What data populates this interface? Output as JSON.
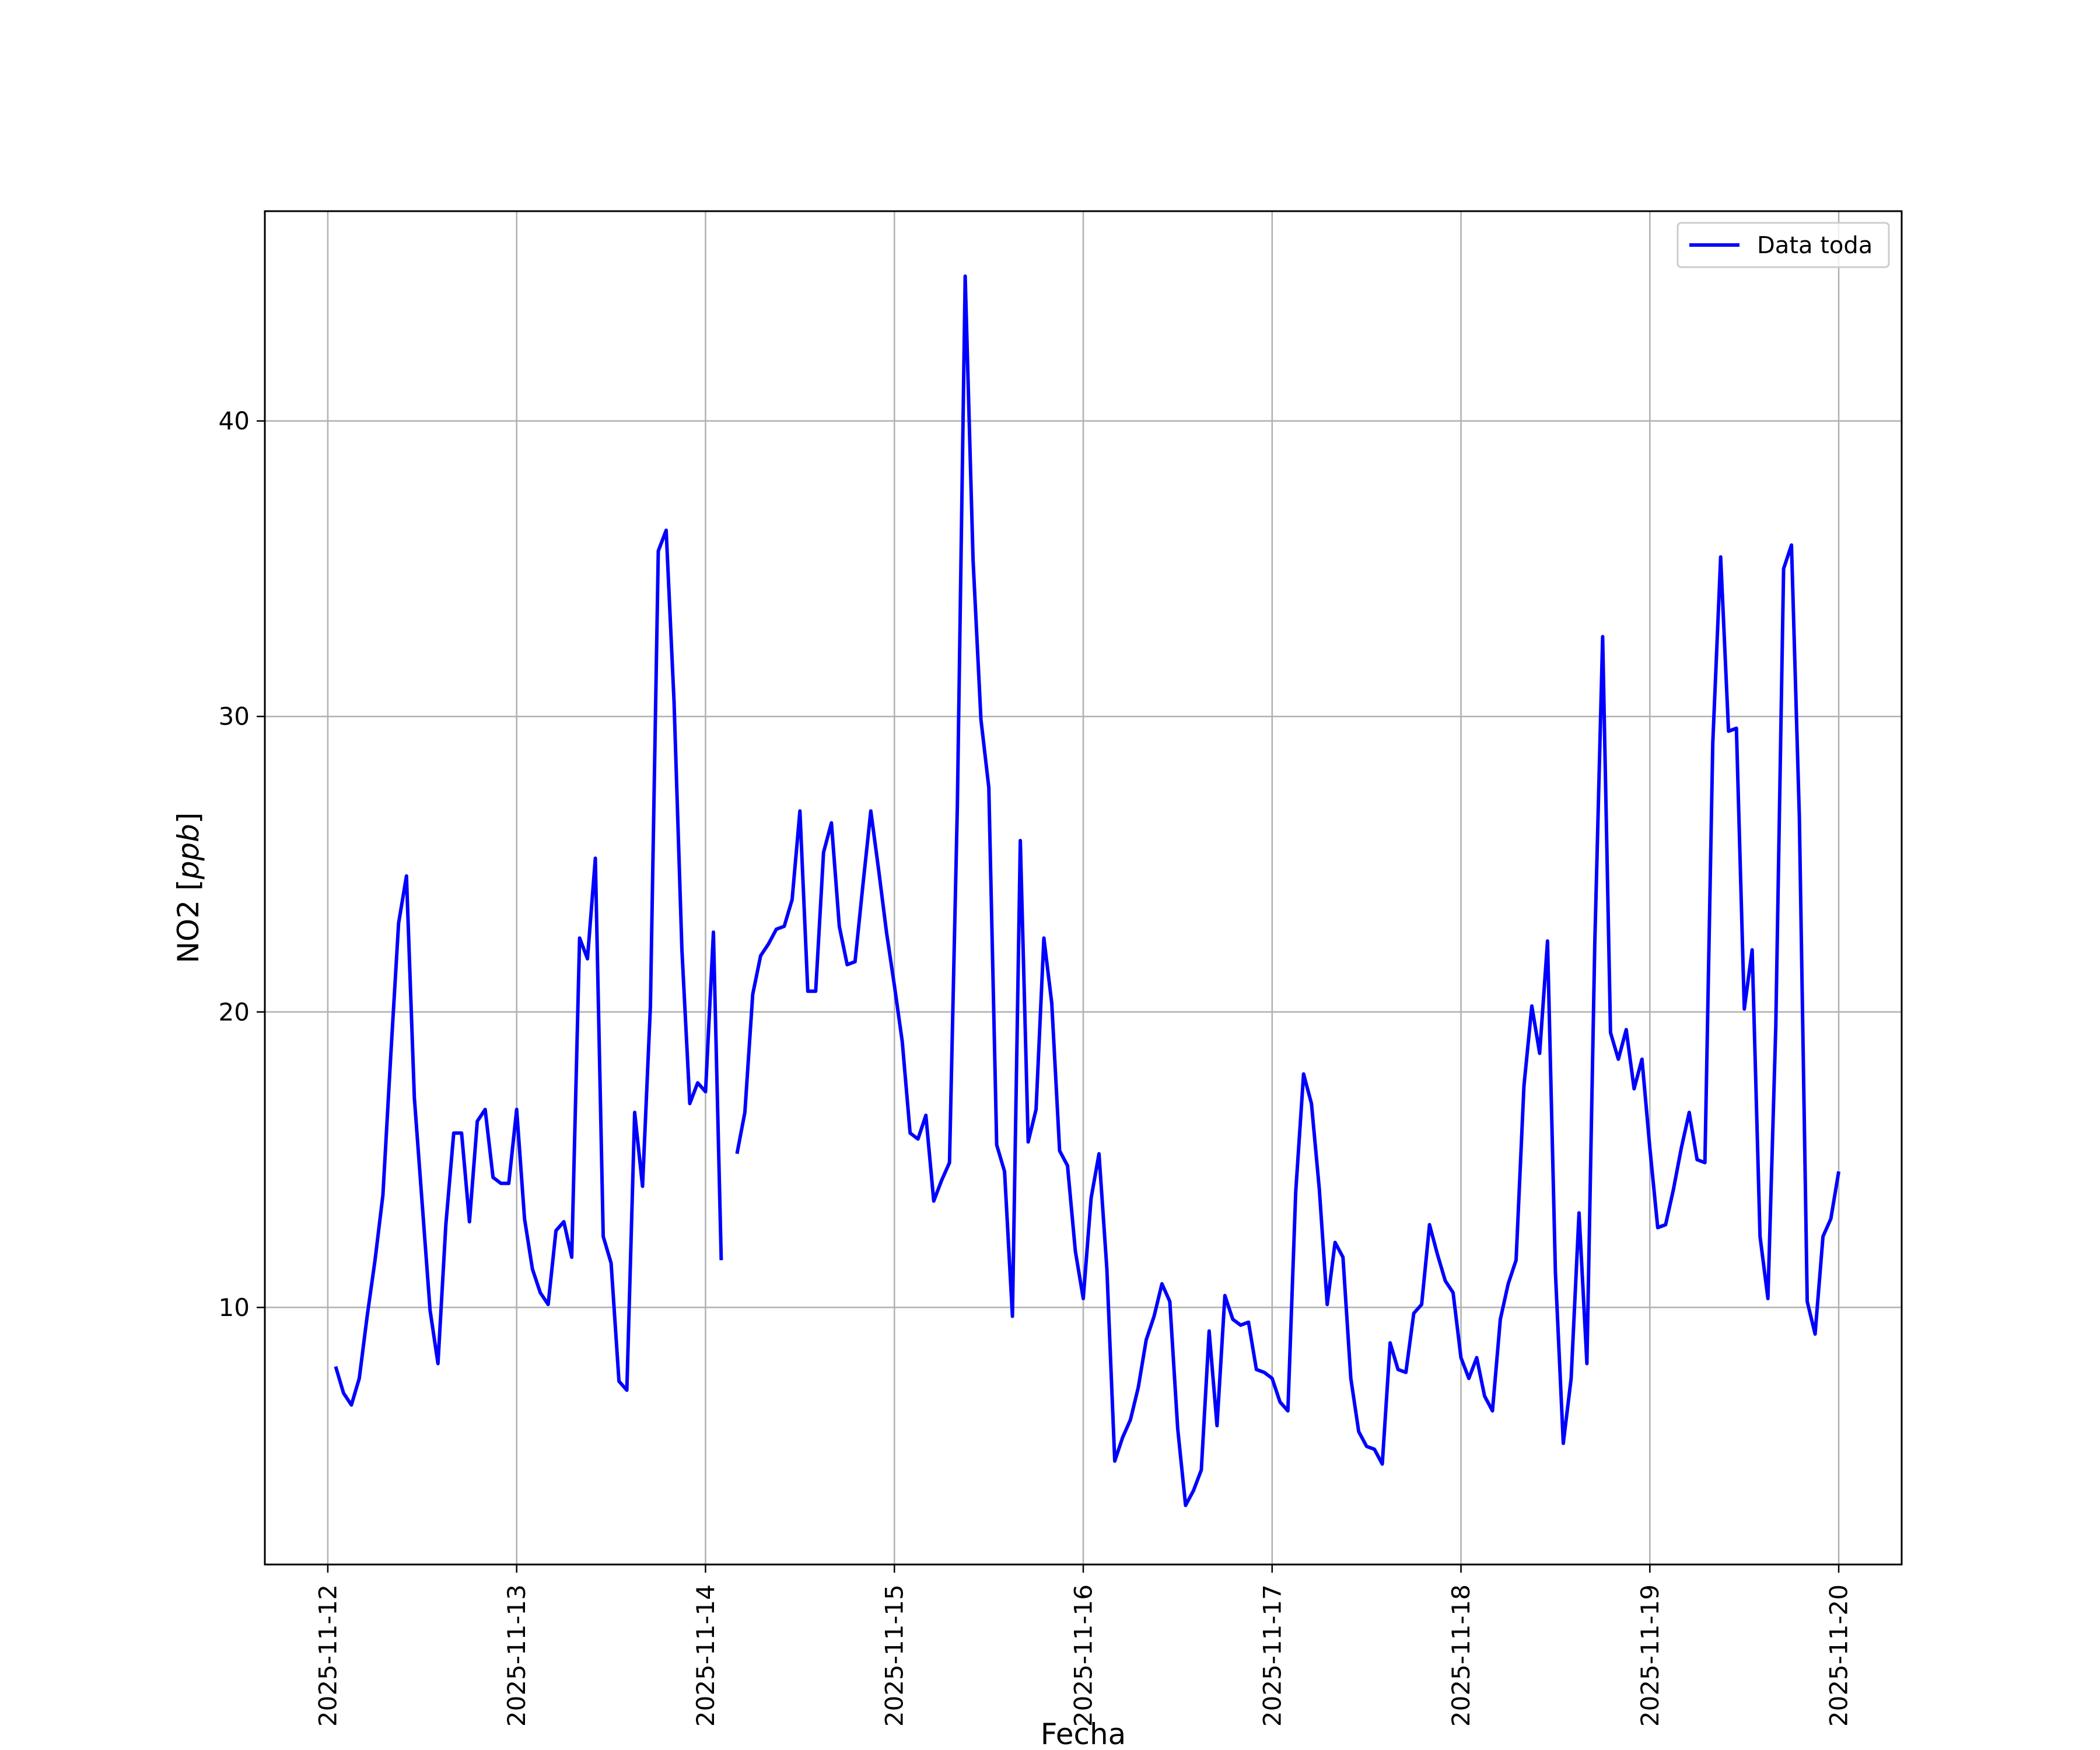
{
  "chart_data": {
    "type": "line",
    "xlabel": "Fecha",
    "ylabel": "NO2 [ppb]",
    "ylabel_parts": {
      "plain": "NO2 [",
      "italic": "ppb",
      "close": "]"
    },
    "x_scale": "date",
    "x_ticks": [
      "2025-11-12",
      "2025-11-13",
      "2025-11-14",
      "2025-11-15",
      "2025-11-16",
      "2025-11-17",
      "2025-11-18",
      "2025-11-19",
      "2025-11-20"
    ],
    "xlim": [
      "2025-11-11T16:00",
      "2025-11-20T08:00"
    ],
    "y_ticks": [
      "10",
      "20",
      "30",
      "40"
    ],
    "ylim": [
      1.3,
      47.1
    ],
    "grid": true,
    "legend": {
      "position": "top-right",
      "entries": [
        "Data toda"
      ]
    },
    "series": [
      {
        "name": "Data toda",
        "color": "#0000ff",
        "segments": [
          [
            [
              "2025-11-12T01:00",
              8.0
            ],
            [
              "2025-11-12T02:00",
              7.1
            ],
            [
              "2025-11-12T03:00",
              6.7
            ],
            [
              "2025-11-12T04:00",
              7.6
            ],
            [
              "2025-11-12T05:00",
              9.7
            ],
            [
              "2025-11-12T06:00",
              11.6
            ],
            [
              "2025-11-12T07:00",
              13.8
            ],
            [
              "2025-11-12T08:00",
              18.5
            ],
            [
              "2025-11-12T09:00",
              23.0
            ],
            [
              "2025-11-12T10:00",
              24.6
            ],
            [
              "2025-11-12T11:00",
              17.1
            ],
            [
              "2025-11-12T12:00",
              13.5
            ],
            [
              "2025-11-12T13:00",
              9.9
            ],
            [
              "2025-11-12T14:00",
              8.1
            ],
            [
              "2025-11-12T15:00",
              12.8
            ],
            [
              "2025-11-12T16:00",
              15.9
            ],
            [
              "2025-11-12T17:00",
              15.9
            ],
            [
              "2025-11-12T18:00",
              12.9
            ],
            [
              "2025-11-12T19:00",
              16.3
            ],
            [
              "2025-11-12T20:00",
              16.7
            ],
            [
              "2025-11-12T21:00",
              14.4
            ],
            [
              "2025-11-12T22:00",
              14.2
            ],
            [
              "2025-11-12T23:00",
              14.2
            ],
            [
              "2025-11-13T00:00",
              16.7
            ],
            [
              "2025-11-13T01:00",
              13.0
            ],
            [
              "2025-11-13T02:00",
              11.3
            ],
            [
              "2025-11-13T03:00",
              10.5
            ],
            [
              "2025-11-13T04:00",
              10.1
            ],
            [
              "2025-11-13T05:00",
              12.6
            ],
            [
              "2025-11-13T06:00",
              12.9
            ],
            [
              "2025-11-13T07:00",
              11.7
            ],
            [
              "2025-11-13T08:00",
              22.5
            ],
            [
              "2025-11-13T09:00",
              21.8
            ],
            [
              "2025-11-13T10:00",
              25.2
            ],
            [
              "2025-11-13T11:00",
              12.4
            ],
            [
              "2025-11-13T12:00",
              11.5
            ],
            [
              "2025-11-13T13:00",
              7.5
            ],
            [
              "2025-11-13T14:00",
              7.2
            ],
            [
              "2025-11-13T15:00",
              16.6
            ],
            [
              "2025-11-13T16:00",
              14.1
            ],
            [
              "2025-11-13T17:00",
              20.2
            ],
            [
              "2025-11-13T18:00",
              35.6
            ],
            [
              "2025-11-13T19:00",
              36.3
            ],
            [
              "2025-11-13T20:00",
              30.5
            ],
            [
              "2025-11-13T21:00",
              22.1
            ],
            [
              "2025-11-13T22:00",
              16.9
            ],
            [
              "2025-11-13T23:00",
              17.6
            ],
            [
              "2025-11-14T00:00",
              17.3
            ],
            [
              "2025-11-14T01:00",
              22.7
            ],
            [
              "2025-11-14T02:00",
              11.6
            ]
          ],
          [
            [
              "2025-11-14T04:00",
              15.2
            ],
            [
              "2025-11-14T05:00",
              16.6
            ],
            [
              "2025-11-14T06:00",
              20.6
            ],
            [
              "2025-11-14T07:00",
              21.9
            ],
            [
              "2025-11-14T08:00",
              22.3
            ],
            [
              "2025-11-14T09:00",
              22.8
            ],
            [
              "2025-11-14T10:00",
              22.9
            ],
            [
              "2025-11-14T11:00",
              23.8
            ],
            [
              "2025-11-14T12:00",
              26.8
            ],
            [
              "2025-11-14T13:00",
              20.7
            ],
            [
              "2025-11-14T14:00",
              20.7
            ],
            [
              "2025-11-14T15:00",
              25.4
            ],
            [
              "2025-11-14T16:00",
              26.4
            ],
            [
              "2025-11-14T17:00",
              22.9
            ],
            [
              "2025-11-14T18:00",
              21.6
            ],
            [
              "2025-11-14T19:00",
              21.7
            ],
            [
              "2025-11-14T20:00",
              24.3
            ],
            [
              "2025-11-14T21:00",
              26.8
            ],
            [
              "2025-11-14T22:00",
              24.8
            ],
            [
              "2025-11-14T23:00",
              22.7
            ],
            [
              "2025-11-15T00:00",
              20.9
            ],
            [
              "2025-11-15T01:00",
              19.0
            ],
            [
              "2025-11-15T02:00",
              15.9
            ],
            [
              "2025-11-15T03:00",
              15.7
            ],
            [
              "2025-11-15T04:00",
              16.5
            ],
            [
              "2025-11-15T05:00",
              13.6
            ],
            [
              "2025-11-15T06:00",
              14.3
            ],
            [
              "2025-11-15T07:00",
              14.9
            ],
            [
              "2025-11-15T08:00",
              27.0
            ],
            [
              "2025-11-15T09:00",
              44.9
            ],
            [
              "2025-11-15T10:00",
              35.3
            ],
            [
              "2025-11-15T11:00",
              29.9
            ],
            [
              "2025-11-15T12:00",
              27.6
            ],
            [
              "2025-11-15T13:00",
              15.5
            ],
            [
              "2025-11-15T14:00",
              14.6
            ],
            [
              "2025-11-15T15:00",
              9.7
            ],
            [
              "2025-11-15T16:00",
              25.8
            ],
            [
              "2025-11-15T17:00",
              15.6
            ],
            [
              "2025-11-15T18:00",
              16.7
            ],
            [
              "2025-11-15T19:00",
              22.5
            ],
            [
              "2025-11-15T20:00",
              20.3
            ],
            [
              "2025-11-15T21:00",
              15.3
            ],
            [
              "2025-11-15T22:00",
              14.8
            ],
            [
              "2025-11-15T23:00",
              11.9
            ],
            [
              "2025-11-16T00:00",
              10.3
            ],
            [
              "2025-11-16T01:00",
              13.7
            ],
            [
              "2025-11-16T02:00",
              15.2
            ],
            [
              "2025-11-16T03:00",
              11.3
            ],
            [
              "2025-11-16T04:00",
              4.8
            ],
            [
              "2025-11-16T05:00",
              5.6
            ],
            [
              "2025-11-16T06:00",
              6.2
            ],
            [
              "2025-11-16T07:00",
              7.3
            ],
            [
              "2025-11-16T08:00",
              8.9
            ],
            [
              "2025-11-16T09:00",
              9.7
            ],
            [
              "2025-11-16T10:00",
              10.8
            ],
            [
              "2025-11-16T11:00",
              10.2
            ],
            [
              "2025-11-16T12:00",
              5.9
            ],
            [
              "2025-11-16T13:00",
              3.3
            ],
            [
              "2025-11-16T14:00",
              3.8
            ],
            [
              "2025-11-16T15:00",
              4.5
            ],
            [
              "2025-11-16T16:00",
              9.2
            ],
            [
              "2025-11-16T17:00",
              6.0
            ],
            [
              "2025-11-16T18:00",
              10.4
            ],
            [
              "2025-11-16T19:00",
              9.6
            ],
            [
              "2025-11-16T20:00",
              9.4
            ],
            [
              "2025-11-16T21:00",
              9.5
            ],
            [
              "2025-11-16T22:00",
              7.9
            ],
            [
              "2025-11-16T23:00",
              7.8
            ],
            [
              "2025-11-17T00:00",
              7.6
            ],
            [
              "2025-11-17T01:00",
              6.8
            ],
            [
              "2025-11-17T02:00",
              6.5
            ],
            [
              "2025-11-17T03:00",
              13.9
            ],
            [
              "2025-11-17T04:00",
              17.9
            ],
            [
              "2025-11-17T05:00",
              16.9
            ],
            [
              "2025-11-17T06:00",
              14.0
            ],
            [
              "2025-11-17T07:00",
              10.1
            ],
            [
              "2025-11-17T08:00",
              12.2
            ],
            [
              "2025-11-17T09:00",
              11.7
            ],
            [
              "2025-11-17T10:00",
              7.6
            ],
            [
              "2025-11-17T11:00",
              5.8
            ],
            [
              "2025-11-17T12:00",
              5.3
            ],
            [
              "2025-11-17T13:00",
              5.2
            ],
            [
              "2025-11-17T14:00",
              4.7
            ],
            [
              "2025-11-17T15:00",
              8.8
            ],
            [
              "2025-11-17T16:00",
              7.9
            ],
            [
              "2025-11-17T17:00",
              7.8
            ],
            [
              "2025-11-17T18:00",
              9.8
            ],
            [
              "2025-11-17T19:00",
              10.1
            ],
            [
              "2025-11-17T20:00",
              12.8
            ],
            [
              "2025-11-17T21:00",
              11.8
            ],
            [
              "2025-11-17T22:00",
              10.9
            ],
            [
              "2025-11-17T23:00",
              10.5
            ],
            [
              "2025-11-18T00:00",
              8.3
            ],
            [
              "2025-11-18T01:00",
              7.6
            ],
            [
              "2025-11-18T02:00",
              8.3
            ],
            [
              "2025-11-18T03:00",
              7.0
            ],
            [
              "2025-11-18T04:00",
              6.5
            ],
            [
              "2025-11-18T05:00",
              9.6
            ],
            [
              "2025-11-18T06:00",
              10.8
            ],
            [
              "2025-11-18T07:00",
              11.6
            ],
            [
              "2025-11-18T08:00",
              17.5
            ],
            [
              "2025-11-18T09:00",
              20.2
            ],
            [
              "2025-11-18T10:00",
              18.6
            ],
            [
              "2025-11-18T11:00",
              22.4
            ],
            [
              "2025-11-18T12:00",
              11.2
            ],
            [
              "2025-11-18T13:00",
              5.4
            ],
            [
              "2025-11-18T14:00",
              7.6
            ],
            [
              "2025-11-18T15:00",
              13.2
            ],
            [
              "2025-11-18T16:00",
              8.1
            ],
            [
              "2025-11-18T17:00",
              22.3
            ],
            [
              "2025-11-18T18:00",
              32.7
            ],
            [
              "2025-11-18T19:00",
              19.3
            ],
            [
              "2025-11-18T20:00",
              18.4
            ],
            [
              "2025-11-18T21:00",
              19.4
            ],
            [
              "2025-11-18T22:00",
              17.4
            ],
            [
              "2025-11-18T23:00",
              18.4
            ],
            [
              "2025-11-19T00:00",
              15.4
            ],
            [
              "2025-11-19T01:00",
              12.7
            ],
            [
              "2025-11-19T02:00",
              12.8
            ],
            [
              "2025-11-19T03:00",
              14.0
            ],
            [
              "2025-11-19T04:00",
              15.4
            ],
            [
              "2025-11-19T05:00",
              16.6
            ],
            [
              "2025-11-19T06:00",
              15.0
            ],
            [
              "2025-11-19T07:00",
              14.9
            ],
            [
              "2025-11-19T08:00",
              29.1
            ],
            [
              "2025-11-19T09:00",
              35.4
            ],
            [
              "2025-11-19T10:00",
              29.5
            ],
            [
              "2025-11-19T11:00",
              29.6
            ],
            [
              "2025-11-19T12:00",
              20.1
            ],
            [
              "2025-11-19T13:00",
              22.1
            ],
            [
              "2025-11-19T14:00",
              12.4
            ],
            [
              "2025-11-19T15:00",
              10.3
            ],
            [
              "2025-11-19T16:00",
              19.5
            ],
            [
              "2025-11-19T17:00",
              35.0
            ],
            [
              "2025-11-19T18:00",
              35.8
            ],
            [
              "2025-11-19T19:00",
              26.6
            ],
            [
              "2025-11-19T20:00",
              10.2
            ],
            [
              "2025-11-19T21:00",
              9.1
            ],
            [
              "2025-11-19T22:00",
              12.4
            ],
            [
              "2025-11-19T23:00",
              13.0
            ],
            [
              "2025-11-20T00:00",
              14.6
            ]
          ]
        ]
      }
    ]
  }
}
